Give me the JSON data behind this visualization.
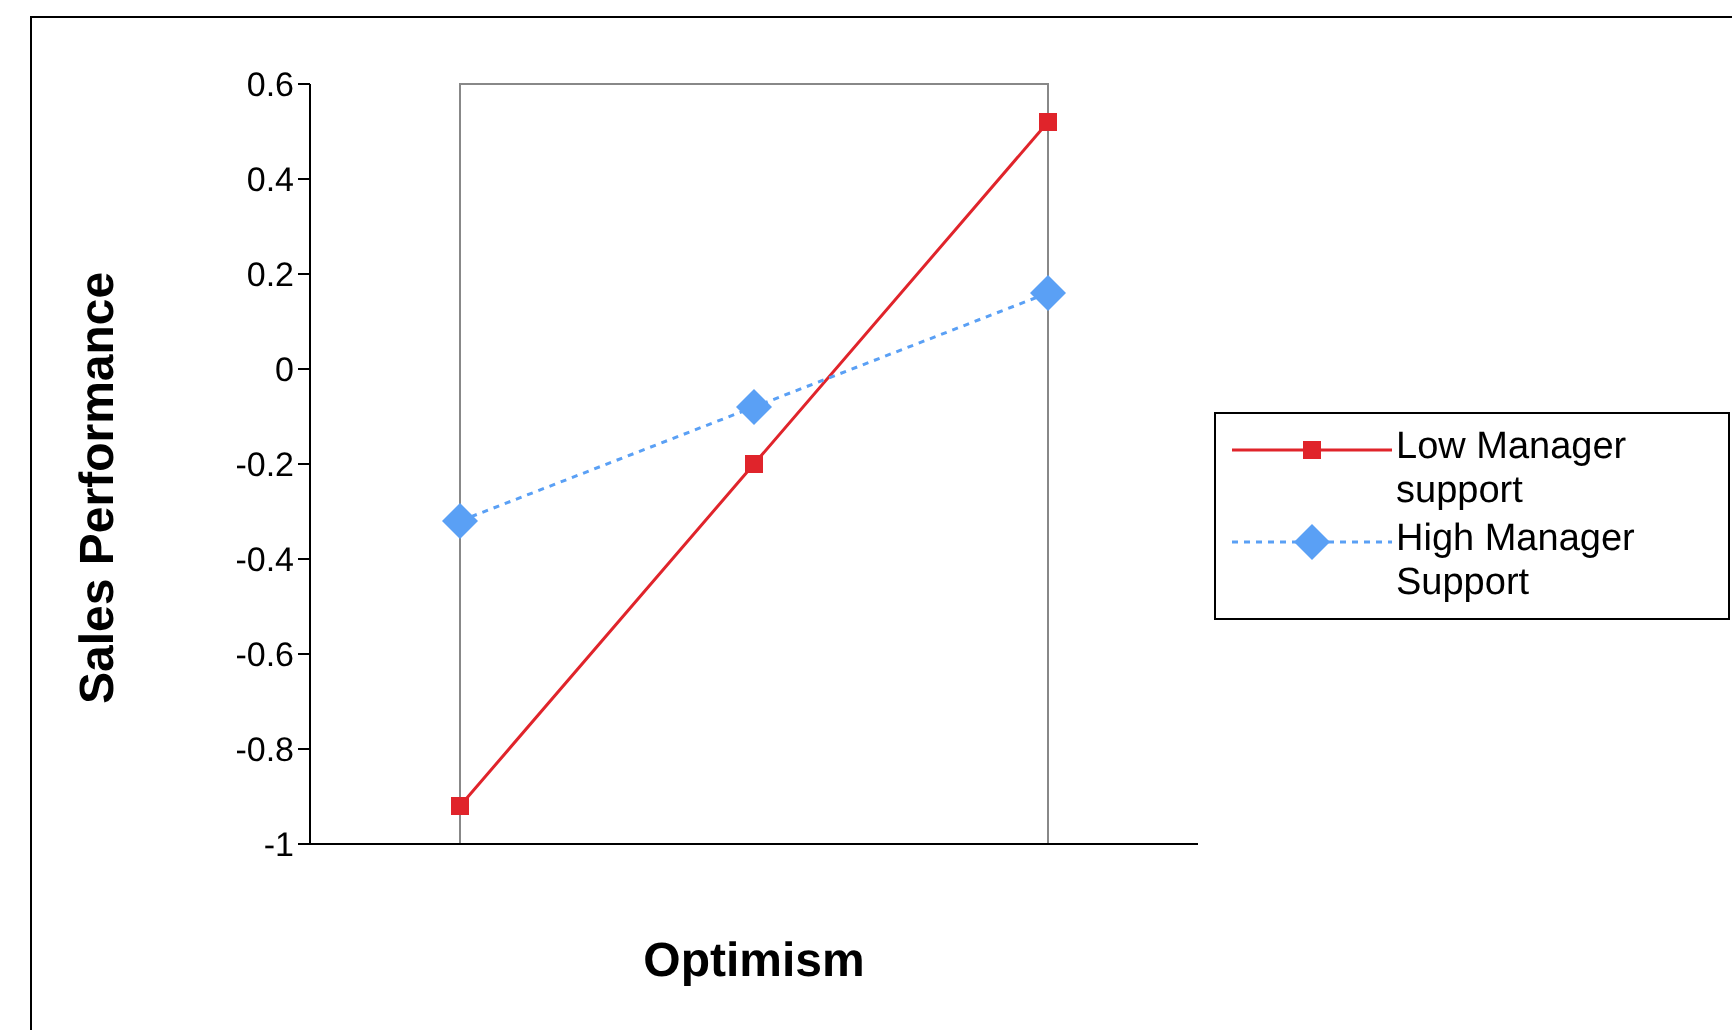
{
  "chart_data": {
    "type": "line",
    "xlabel": "Optimism",
    "ylabel": "Sales Performance",
    "categories": [
      null,
      null,
      null
    ],
    "ylim": [
      -1,
      0.6
    ],
    "yticks": [
      -1,
      -0.8,
      -0.6,
      -0.4,
      -0.2,
      0,
      0.2,
      0.4,
      0.6
    ],
    "grid": false,
    "legend": "right",
    "series": [
      {
        "name": "Low Manager support",
        "color": "#e0242b",
        "values": [
          -0.92,
          -0.2,
          0.52
        ],
        "marker": "square",
        "line_style": "solid"
      },
      {
        "name": "High Manager Support",
        "color": "#5aa0f5",
        "values": [
          -0.32,
          -0.08,
          0.16
        ],
        "marker": "diamond",
        "line_style": "dotted"
      }
    ]
  }
}
